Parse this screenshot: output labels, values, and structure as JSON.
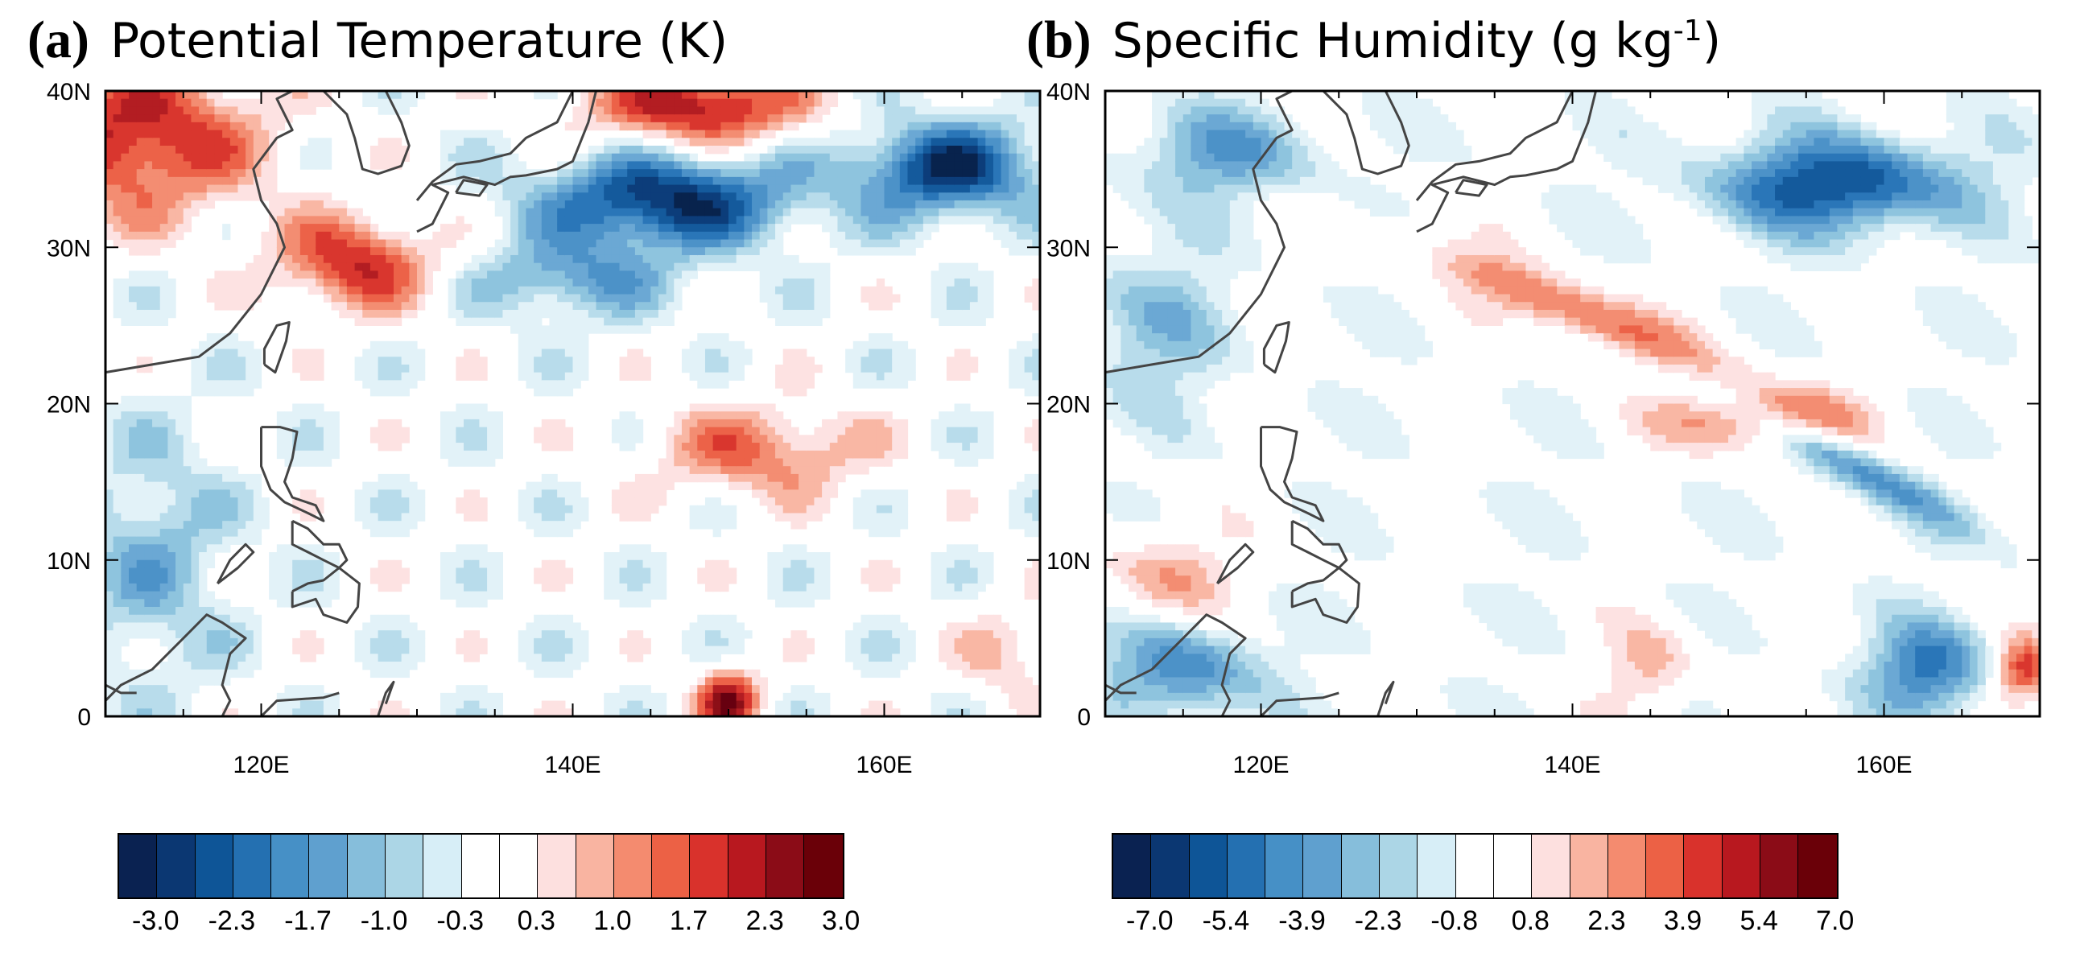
{
  "panels": [
    {
      "letter": "(a)",
      "title": "Potential Temperature (K)",
      "title_sup": "",
      "title_tail": "",
      "variable": "potential-temperature",
      "lat_labels": [
        "40N",
        "30N",
        "20N",
        "10N",
        "0"
      ],
      "lon_labels": [
        "120E",
        "140E",
        "160E"
      ],
      "colorbar": {
        "labels": [
          "-3.0",
          "-2.3",
          "-1.7",
          "-1.0",
          "-0.3",
          "0.3",
          "1.0",
          "1.7",
          "2.3",
          "3.0"
        ]
      }
    },
    {
      "letter": "(b)",
      "title": "Specific Humidity (g kg",
      "title_sup": "-1",
      "title_tail": ")",
      "variable": "specific-humidity",
      "lat_labels": [
        "40N",
        "30N",
        "20N",
        "10N",
        "0"
      ],
      "lon_labels": [
        "120E",
        "140E",
        "160E"
      ],
      "colorbar": {
        "labels": [
          "-7.0",
          "-5.4",
          "-3.9",
          "-2.3",
          "-0.8",
          "0.8",
          "2.3",
          "3.9",
          "5.4",
          "7.0"
        ]
      }
    }
  ],
  "map": {
    "lon_range": [
      110,
      170
    ],
    "lat_range": [
      0,
      40
    ],
    "lat_values": [
      40,
      30,
      20,
      10,
      0
    ],
    "lon_values": [
      120,
      140,
      160
    ],
    "colormap": [
      "#08234d",
      "#0c3d7a",
      "#145a9c",
      "#2a76b8",
      "#4c92c8",
      "#6ba8d4",
      "#8ec4de",
      "#b8dceb",
      "#e2f2f8",
      "#ffffff",
      "#ffffff",
      "#fde2e2",
      "#f9b7a4",
      "#f38d72",
      "#ec6248",
      "#d9362e",
      "#b31d22",
      "#8c0f17",
      "#670010"
    ]
  },
  "colorbar_colors": [
    "#0a2251",
    "#0b3772",
    "#0e5597",
    "#2470b1",
    "#4690c6",
    "#5fa0cf",
    "#86bedb",
    "#acd6e6",
    "#d7eef7",
    "#ffffff",
    "#ffffff",
    "#fde0df",
    "#f9b4a1",
    "#f48b6f",
    "#ec6145",
    "#d9322c",
    "#b8181f",
    "#8b0c17",
    "#6a0008"
  ]
}
